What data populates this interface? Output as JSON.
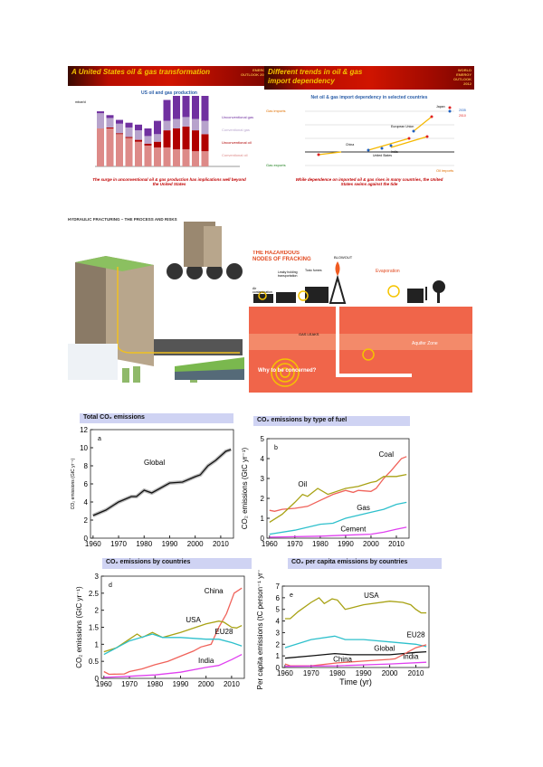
{
  "slide1": {
    "title": "A United States oil & gas transformation",
    "logo": "ENERGY OUTLOOK 2012",
    "chart_title": "US oil and gas production",
    "y_unit": "mboe/d",
    "legend": [
      "Unconventional gas",
      "Conventional gas",
      "Unconventional oil",
      "Conventional oil"
    ],
    "caption": "The surge in unconventional oil & gas production has implications well beyond the United States"
  },
  "slide2": {
    "title_line1": "Different trends in oil & gas",
    "title_line2": "import dependency",
    "logo": "WORLD ENERGY OUTLOOK 2012",
    "chart_title": "Net oil & gas import dependency in selected countries",
    "y_top": "Gas imports",
    "y_bottom": "Gas exports",
    "x_right": "Oil imports",
    "legend": [
      "2035",
      "2010"
    ],
    "labels": [
      "Japan",
      "European Union",
      "China",
      "India",
      "United States"
    ],
    "caption": "While dependence on imported oil & gas rises in many countries, the United States swims against the tide"
  },
  "infographic": {
    "title": "HYDRAULIC FRACTURING – THE PROCESS AND RISKS"
  },
  "fracking": {
    "title_line1": "THE HAZARDOUS",
    "title_line2": "NODES OF FRACKING",
    "labels": [
      "Air contamination",
      "Leaky holding transportation",
      "Toxic fumes",
      "BLOWOUT",
      "Evaporation",
      "GAS LEAKS",
      "Aquifer Zone",
      "Why to be concerned?"
    ]
  },
  "colors": {
    "header_bg": "#cfd3f3",
    "coal": "#f0625a",
    "oil": "#a8a214",
    "gas": "#2ec0cc",
    "cement": "#e040f0",
    "china": "#f0625a",
    "usa": "#a8a214",
    "eu28": "#2ec0cc",
    "india": "#e040f0",
    "global": "#111111"
  },
  "chart_data": [
    {
      "type": "line",
      "title": "Total CO₂ emissions",
      "panel": "a",
      "ylabel": "CO₂ emissions (GtC yr⁻¹)",
      "xlim": [
        1959,
        2015
      ],
      "ylim": [
        0,
        12
      ],
      "xticks": [
        1960,
        1970,
        1980,
        1990,
        2000,
        2010
      ],
      "yticks": [
        0,
        2,
        4,
        6,
        8,
        10,
        12
      ],
      "series": [
        {
          "name": "Global",
          "color": "#111111",
          "x": [
            1960,
            1965,
            1970,
            1975,
            1977,
            1980,
            1983,
            1990,
            1995,
            2000,
            2002,
            2005,
            2008,
            2010,
            2012,
            2014
          ],
          "y": [
            2.5,
            3.1,
            4.0,
            4.6,
            4.6,
            5.3,
            5.0,
            6.1,
            6.2,
            6.8,
            7.0,
            8.0,
            8.6,
            9.1,
            9.6,
            9.8
          ]
        }
      ]
    },
    {
      "type": "line",
      "title": "CO₂ emissions by type of fuel",
      "panel": "b",
      "ylabel": "CO₂ emissions (GtC yr⁻¹)",
      "xlim": [
        1959,
        2015
      ],
      "ylim": [
        0,
        5
      ],
      "xticks": [
        1960,
        1970,
        1980,
        1990,
        2000,
        2010
      ],
      "yticks": [
        0,
        1,
        2,
        3,
        4,
        5
      ],
      "series": [
        {
          "name": "Coal",
          "color": "#f0625a",
          "x": [
            1960,
            1962,
            1965,
            1970,
            1975,
            1980,
            1985,
            1990,
            1993,
            1995,
            2000,
            2002,
            2005,
            2008,
            2010,
            2012,
            2014
          ],
          "y": [
            1.4,
            1.35,
            1.45,
            1.5,
            1.6,
            1.9,
            2.2,
            2.4,
            2.3,
            2.4,
            2.35,
            2.5,
            3.0,
            3.4,
            3.7,
            4.0,
            4.1
          ]
        },
        {
          "name": "Oil",
          "color": "#a8a214",
          "x": [
            1960,
            1965,
            1970,
            1973,
            1975,
            1979,
            1983,
            1990,
            1995,
            2000,
            2002,
            2005,
            2008,
            2010,
            2014
          ],
          "y": [
            0.8,
            1.2,
            1.8,
            2.2,
            2.1,
            2.5,
            2.2,
            2.5,
            2.6,
            2.8,
            2.85,
            3.1,
            3.1,
            3.1,
            3.2
          ]
        },
        {
          "name": "Gas",
          "color": "#2ec0cc",
          "x": [
            1960,
            1970,
            1980,
            1985,
            1990,
            2000,
            2005,
            2010,
            2014
          ],
          "y": [
            0.2,
            0.4,
            0.7,
            0.75,
            1.0,
            1.3,
            1.45,
            1.7,
            1.8
          ]
        },
        {
          "name": "Cement",
          "color": "#e040f0",
          "x": [
            1960,
            1980,
            1990,
            2000,
            2005,
            2010,
            2014
          ],
          "y": [
            0.05,
            0.1,
            0.15,
            0.2,
            0.3,
            0.45,
            0.55
          ]
        }
      ]
    },
    {
      "type": "line",
      "title": "CO₂ emissions by countries",
      "panel": "d",
      "ylabel": "CO₂ emissions (GtC yr⁻¹)",
      "xlim": [
        1959,
        2015
      ],
      "ylim": [
        0,
        3
      ],
      "xticks": [
        1960,
        1970,
        1980,
        1990,
        2000,
        2010
      ],
      "yticks": [
        0,
        0.5,
        1,
        1.5,
        2,
        2.5,
        3
      ],
      "series": [
        {
          "name": "China",
          "color": "#f0625a",
          "x": [
            1960,
            1962,
            1968,
            1970,
            1975,
            1980,
            1985,
            1990,
            1995,
            1998,
            2002,
            2005,
            2008,
            2011,
            2014
          ],
          "y": [
            0.2,
            0.12,
            0.13,
            0.2,
            0.28,
            0.4,
            0.5,
            0.65,
            0.8,
            0.92,
            1.0,
            1.5,
            1.9,
            2.5,
            2.65
          ]
        },
        {
          "name": "USA",
          "color": "#a8a214",
          "x": [
            1960,
            1965,
            1970,
            1973,
            1975,
            1979,
            1983,
            1990,
            2000,
            2005,
            2007,
            2010,
            2012,
            2014
          ],
          "y": [
            0.78,
            0.9,
            1.15,
            1.3,
            1.2,
            1.35,
            1.2,
            1.35,
            1.6,
            1.68,
            1.65,
            1.5,
            1.48,
            1.55
          ]
        },
        {
          "name": "EU28",
          "color": "#2ec0cc",
          "x": [
            1960,
            1965,
            1970,
            1979,
            1983,
            1990,
            2000,
            2005,
            2010,
            2014
          ],
          "y": [
            0.7,
            0.9,
            1.1,
            1.3,
            1.2,
            1.2,
            1.15,
            1.15,
            1.05,
            0.95
          ]
        },
        {
          "name": "India",
          "color": "#e040f0",
          "x": [
            1960,
            1970,
            1980,
            1990,
            2000,
            2005,
            2010,
            2014
          ],
          "y": [
            0.03,
            0.06,
            0.1,
            0.18,
            0.32,
            0.38,
            0.55,
            0.7
          ]
        }
      ]
    },
    {
      "type": "line",
      "title": "CO₂ per capita emissions by countries",
      "panel": "e",
      "ylabel": "Per capita emissions (tC person⁻¹ yr⁻¹)",
      "xlabel": "Time (yr)",
      "xlim": [
        1959,
        2015
      ],
      "ylim": [
        0,
        7
      ],
      "xticks": [
        1960,
        1970,
        1980,
        1990,
        2000,
        2010
      ],
      "yticks": [
        0,
        1,
        2,
        3,
        4,
        5,
        6,
        7
      ],
      "series": [
        {
          "name": "USA",
          "color": "#a8a214",
          "x": [
            1960,
            1962,
            1965,
            1970,
            1973,
            1975,
            1978,
            1980,
            1983,
            1985,
            1990,
            2000,
            2005,
            2008,
            2010,
            2012,
            2014
          ],
          "y": [
            4.2,
            4.2,
            4.8,
            5.6,
            6.0,
            5.5,
            5.9,
            5.8,
            5.0,
            5.1,
            5.4,
            5.7,
            5.6,
            5.4,
            5.0,
            4.7,
            4.7
          ]
        },
        {
          "name": "EU28",
          "color": "#2ec0cc",
          "x": [
            1960,
            1970,
            1979,
            1983,
            1990,
            2000,
            2010,
            2014
          ],
          "y": [
            1.7,
            2.4,
            2.7,
            2.4,
            2.4,
            2.2,
            2.0,
            1.8
          ]
        },
        {
          "name": "Global",
          "color": "#111111",
          "x": [
            1960,
            1970,
            1979,
            1985,
            2000,
            2005,
            2010,
            2014
          ],
          "y": [
            0.8,
            1.0,
            1.2,
            1.1,
            1.1,
            1.2,
            1.3,
            1.35
          ]
        },
        {
          "name": "China",
          "color": "#f0625a",
          "x": [
            1960,
            1962,
            1970,
            1980,
            1990,
            2000,
            2002,
            2005,
            2010,
            2014
          ],
          "y": [
            0.3,
            0.15,
            0.15,
            0.4,
            0.55,
            0.7,
            0.75,
            1.1,
            1.7,
            1.95
          ]
        },
        {
          "name": "India",
          "color": "#e040f0",
          "x": [
            1960,
            1980,
            2000,
            2014
          ],
          "y": [
            0.1,
            0.15,
            0.3,
            0.45
          ]
        }
      ]
    }
  ]
}
